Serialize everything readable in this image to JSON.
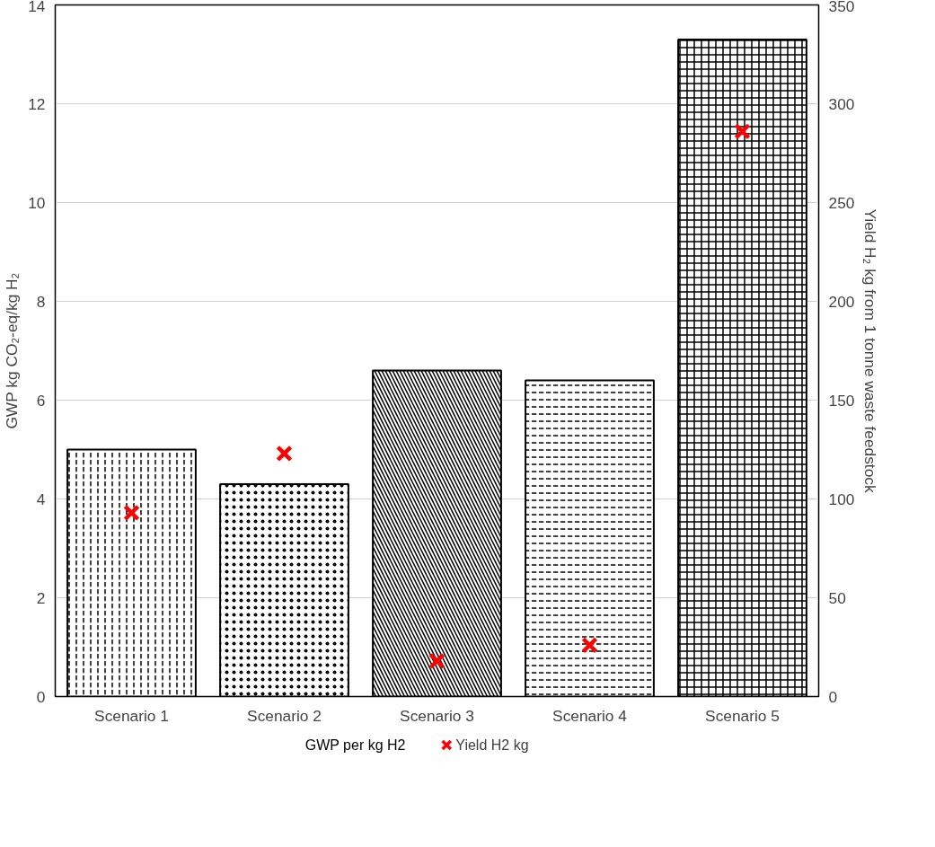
{
  "chart_data": {
    "type": "bar",
    "categories": [
      "Scenario 1",
      "Scenario 2",
      "Scenario 3",
      "Scenario 4",
      "Scenario 5"
    ],
    "ylabel": "GWP kg CO₂-eq/kg H₂",
    "y2label": "Yield H₂ kg from 1 tonne waste feedstock",
    "ylim": [
      0,
      14
    ],
    "yticks": [
      0,
      2,
      4,
      6,
      8,
      10,
      12,
      14
    ],
    "y2lim": [
      0,
      350
    ],
    "y2ticks": [
      0,
      50,
      100,
      150,
      200,
      250,
      300,
      350
    ],
    "grid": "y",
    "legend": "bottom",
    "series": [
      {
        "name": "GWP per kg H2",
        "color": "#000000",
        "values": [
          5.0,
          4.3,
          6.6,
          6.4,
          13.3
        ]
      },
      {
        "name": "Yield H2 kg",
        "type": "scatter",
        "axis": "y2",
        "marker": "cross",
        "color": "#ff0000",
        "values": [
          93,
          123,
          18,
          26,
          286
        ]
      }
    ]
  }
}
